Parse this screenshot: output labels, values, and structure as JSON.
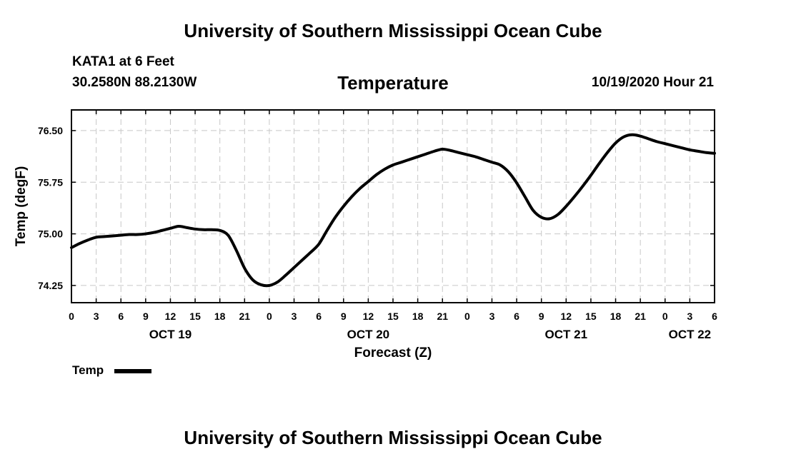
{
  "header": {
    "top_title": "University of Southern Mississippi Ocean Cube",
    "station": "KATA1 at 6 Feet",
    "coords": "30.2580N 88.2130W",
    "chart_title": "Temperature",
    "timestamp": "10/19/2020 Hour 21"
  },
  "footer": {
    "bottom_title": "University of Southern Mississippi Ocean Cube"
  },
  "legend": {
    "label": "Temp"
  },
  "chart_data": {
    "type": "line",
    "title": "Temperature",
    "xlabel": "Forecast (Z)",
    "ylabel": "Temp (degF)",
    "x_unit": "hours since 10/19 00Z",
    "xlim": [
      0,
      78
    ],
    "ylim": [
      74.0,
      76.8
    ],
    "y_ticks": [
      74.25,
      75.0,
      75.75,
      76.5
    ],
    "y_tick_labels": [
      "74.25",
      "75.00",
      "75.75",
      "76.50"
    ],
    "x_ticks": [
      0,
      3,
      6,
      9,
      12,
      15,
      18,
      21,
      24,
      27,
      30,
      33,
      36,
      39,
      42,
      45,
      48,
      51,
      54,
      57,
      60,
      63,
      66,
      69,
      72,
      75,
      78
    ],
    "x_tick_labels": [
      "0",
      "3",
      "6",
      "9",
      "12",
      "15",
      "18",
      "21",
      "0",
      "3",
      "6",
      "9",
      "12",
      "15",
      "18",
      "21",
      "0",
      "3",
      "6",
      "9",
      "12",
      "15",
      "18",
      "21",
      "0",
      "3",
      "6"
    ],
    "date_labels": [
      {
        "x": 12,
        "label": "OCT 19"
      },
      {
        "x": 36,
        "label": "OCT 20"
      },
      {
        "x": 60,
        "label": "OCT 21"
      },
      {
        "x": 75,
        "label": "OCT 22"
      }
    ],
    "grid": true,
    "legend_position": "bottom-left",
    "series": [
      {
        "name": "Temp",
        "x": [
          0,
          1,
          2,
          3,
          4,
          5,
          6,
          7,
          8,
          9,
          10,
          11,
          12,
          13,
          14,
          15,
          16,
          17,
          18,
          19,
          20,
          21,
          22,
          23,
          24,
          25,
          26,
          27,
          28,
          29,
          30,
          31,
          32,
          33,
          34,
          35,
          36,
          37,
          38,
          39,
          40,
          41,
          42,
          43,
          44,
          45,
          46,
          47,
          48,
          49,
          50,
          51,
          52,
          53,
          54,
          55,
          56,
          57,
          58,
          59,
          60,
          61,
          62,
          63,
          64,
          65,
          66,
          67,
          68,
          69,
          70,
          71,
          72,
          73,
          74,
          75,
          76,
          77,
          78
        ],
        "y": [
          74.8,
          74.86,
          74.91,
          74.95,
          74.96,
          74.97,
          74.98,
          74.99,
          74.99,
          75.0,
          75.02,
          75.05,
          75.08,
          75.11,
          75.09,
          75.07,
          75.06,
          75.06,
          75.05,
          74.98,
          74.76,
          74.5,
          74.33,
          74.26,
          74.25,
          74.3,
          74.4,
          74.51,
          74.62,
          74.73,
          74.85,
          75.05,
          75.24,
          75.4,
          75.54,
          75.66,
          75.76,
          75.86,
          75.94,
          76.0,
          76.04,
          76.08,
          76.12,
          76.16,
          76.2,
          76.23,
          76.21,
          76.18,
          76.15,
          76.12,
          76.08,
          76.04,
          76.0,
          75.9,
          75.74,
          75.54,
          75.34,
          75.24,
          75.22,
          75.28,
          75.4,
          75.54,
          75.69,
          75.85,
          76.02,
          76.18,
          76.32,
          76.41,
          76.44,
          76.42,
          76.38,
          76.34,
          76.31,
          76.28,
          76.25,
          76.22,
          76.2,
          76.18,
          76.17
        ]
      }
    ]
  }
}
